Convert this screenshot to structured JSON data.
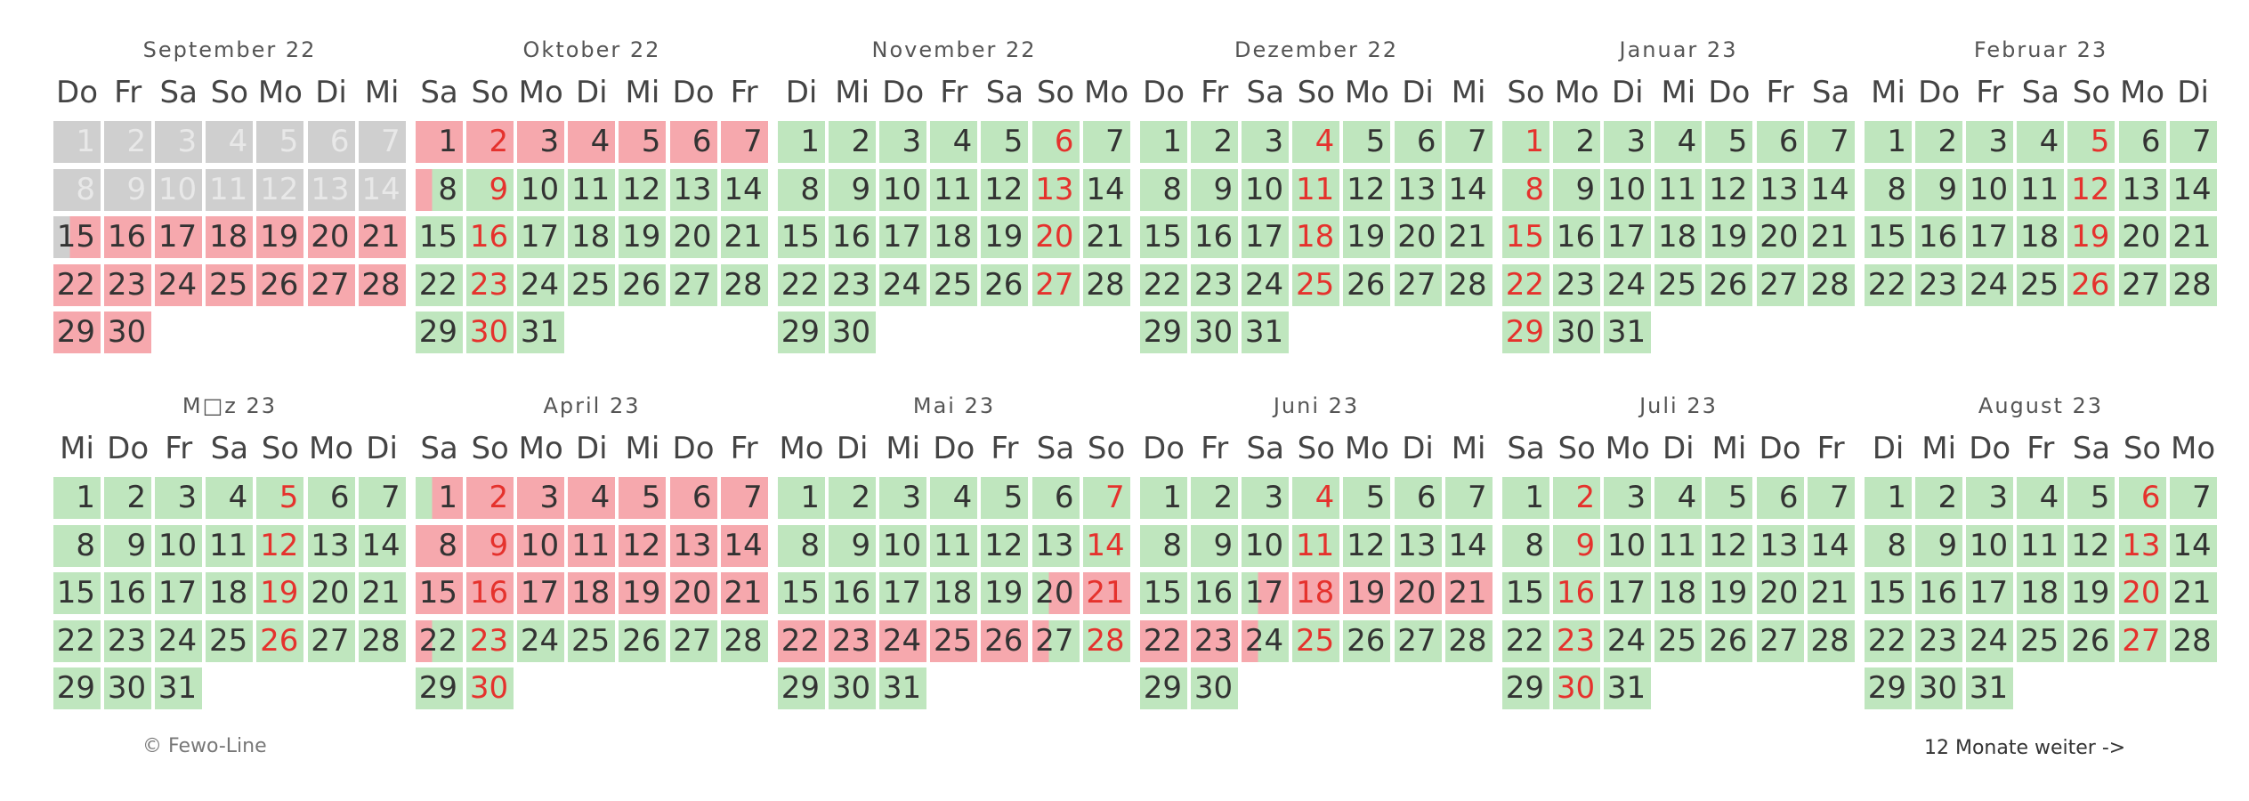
{
  "months": [
    {
      "title": "September 22",
      "weekdays": [
        "Do",
        "Fr",
        "Sa",
        "So",
        "Mo",
        "Di",
        "Mi"
      ],
      "days": 30,
      "sundays": [],
      "status": [
        "p",
        "p",
        "p",
        "p",
        "p",
        "p",
        "p",
        "p",
        "p",
        "p",
        "p",
        "p",
        "p",
        "p",
        "pci",
        "b",
        "b",
        "b",
        "b",
        "b",
        "b",
        "b",
        "b",
        "b",
        "b",
        "b",
        "b",
        "b",
        "b",
        "b"
      ]
    },
    {
      "title": "Oktober 22",
      "weekdays": [
        "Sa",
        "So",
        "Mo",
        "Di",
        "Mi",
        "Do",
        "Fr"
      ],
      "days": 31,
      "sundays": [
        2,
        9,
        16,
        23,
        30
      ],
      "status": [
        "b",
        "b",
        "b",
        "b",
        "b",
        "b",
        "b",
        "co",
        "f",
        "f",
        "f",
        "f",
        "f",
        "f",
        "f",
        "f",
        "f",
        "f",
        "f",
        "f",
        "f",
        "f",
        "f",
        "f",
        "f",
        "f",
        "f",
        "f",
        "f",
        "f",
        "f"
      ]
    },
    {
      "title": "November 22",
      "weekdays": [
        "Di",
        "Mi",
        "Do",
        "Fr",
        "Sa",
        "So",
        "Mo"
      ],
      "days": 30,
      "sundays": [
        6,
        13,
        20,
        27
      ],
      "status": [
        "f",
        "f",
        "f",
        "f",
        "f",
        "f",
        "f",
        "f",
        "f",
        "f",
        "f",
        "f",
        "f",
        "f",
        "f",
        "f",
        "f",
        "f",
        "f",
        "f",
        "f",
        "f",
        "f",
        "f",
        "f",
        "f",
        "f",
        "f",
        "f",
        "f"
      ]
    },
    {
      "title": "Dezember 22",
      "weekdays": [
        "Do",
        "Fr",
        "Sa",
        "So",
        "Mo",
        "Di",
        "Mi"
      ],
      "days": 31,
      "sundays": [
        4,
        11,
        18,
        25
      ],
      "status": [
        "f",
        "f",
        "f",
        "f",
        "f",
        "f",
        "f",
        "f",
        "f",
        "f",
        "f",
        "f",
        "f",
        "f",
        "f",
        "f",
        "f",
        "f",
        "f",
        "f",
        "f",
        "f",
        "f",
        "f",
        "f",
        "f",
        "f",
        "f",
        "f",
        "f",
        "f"
      ]
    },
    {
      "title": "Januar 23",
      "weekdays": [
        "So",
        "Mo",
        "Di",
        "Mi",
        "Do",
        "Fr",
        "Sa"
      ],
      "days": 31,
      "sundays": [
        1,
        8,
        15,
        22,
        29
      ],
      "status": [
        "f",
        "f",
        "f",
        "f",
        "f",
        "f",
        "f",
        "f",
        "f",
        "f",
        "f",
        "f",
        "f",
        "f",
        "f",
        "f",
        "f",
        "f",
        "f",
        "f",
        "f",
        "f",
        "f",
        "f",
        "f",
        "f",
        "f",
        "f",
        "f",
        "f",
        "f"
      ]
    },
    {
      "title": "Februar 23",
      "weekdays": [
        "Mi",
        "Do",
        "Fr",
        "Sa",
        "So",
        "Mo",
        "Di"
      ],
      "days": 28,
      "sundays": [
        5,
        12,
        19,
        26
      ],
      "status": [
        "f",
        "f",
        "f",
        "f",
        "f",
        "f",
        "f",
        "f",
        "f",
        "f",
        "f",
        "f",
        "f",
        "f",
        "f",
        "f",
        "f",
        "f",
        "f",
        "f",
        "f",
        "f",
        "f",
        "f",
        "f",
        "f",
        "f",
        "f"
      ]
    },
    {
      "title": "M□z 23",
      "weekdays": [
        "Mi",
        "Do",
        "Fr",
        "Sa",
        "So",
        "Mo",
        "Di"
      ],
      "days": 31,
      "sundays": [
        5,
        12,
        19,
        26
      ],
      "status": [
        "f",
        "f",
        "f",
        "f",
        "f",
        "f",
        "f",
        "f",
        "f",
        "f",
        "f",
        "f",
        "f",
        "f",
        "f",
        "f",
        "f",
        "f",
        "f",
        "f",
        "f",
        "f",
        "f",
        "f",
        "f",
        "f",
        "f",
        "f",
        "f",
        "f",
        "f"
      ]
    },
    {
      "title": "April 23",
      "weekdays": [
        "Sa",
        "So",
        "Mo",
        "Di",
        "Mi",
        "Do",
        "Fr"
      ],
      "days": 30,
      "sundays": [
        2,
        9,
        16,
        23,
        30
      ],
      "status": [
        "ci",
        "b",
        "b",
        "b",
        "b",
        "b",
        "b",
        "b",
        "b",
        "b",
        "b",
        "b",
        "b",
        "b",
        "b",
        "b",
        "b",
        "b",
        "b",
        "b",
        "b",
        "co",
        "f",
        "f",
        "f",
        "f",
        "f",
        "f",
        "f",
        "f"
      ]
    },
    {
      "title": "Mai 23",
      "weekdays": [
        "Mo",
        "Di",
        "Mi",
        "Do",
        "Fr",
        "Sa",
        "So"
      ],
      "days": 31,
      "sundays": [
        7,
        14,
        21,
        28
      ],
      "status": [
        "f",
        "f",
        "f",
        "f",
        "f",
        "f",
        "f",
        "f",
        "f",
        "f",
        "f",
        "f",
        "f",
        "f",
        "f",
        "f",
        "f",
        "f",
        "f",
        "ci",
        "b",
        "b",
        "b",
        "b",
        "b",
        "b",
        "co",
        "f",
        "f",
        "f",
        "f"
      ]
    },
    {
      "title": "Juni 23",
      "weekdays": [
        "Do",
        "Fr",
        "Sa",
        "So",
        "Mo",
        "Di",
        "Mi"
      ],
      "days": 30,
      "sundays": [
        4,
        11,
        18,
        25
      ],
      "status": [
        "f",
        "f",
        "f",
        "f",
        "f",
        "f",
        "f",
        "f",
        "f",
        "f",
        "f",
        "f",
        "f",
        "f",
        "f",
        "f",
        "ci",
        "b",
        "b",
        "b",
        "b",
        "b",
        "b",
        "co",
        "f",
        "f",
        "f",
        "f",
        "f",
        "f"
      ]
    },
    {
      "title": "Juli 23",
      "weekdays": [
        "Sa",
        "So",
        "Mo",
        "Di",
        "Mi",
        "Do",
        "Fr"
      ],
      "days": 31,
      "sundays": [
        2,
        9,
        16,
        23,
        30
      ],
      "status": [
        "f",
        "f",
        "f",
        "f",
        "f",
        "f",
        "f",
        "f",
        "f",
        "f",
        "f",
        "f",
        "f",
        "f",
        "f",
        "f",
        "f",
        "f",
        "f",
        "f",
        "f",
        "f",
        "f",
        "f",
        "f",
        "f",
        "f",
        "f",
        "f",
        "f",
        "f"
      ]
    },
    {
      "title": "August 23",
      "weekdays": [
        "Di",
        "Mi",
        "Do",
        "Fr",
        "Sa",
        "So",
        "Mo"
      ],
      "days": 31,
      "sundays": [
        6,
        13,
        20,
        27
      ],
      "status": [
        "f",
        "f",
        "f",
        "f",
        "f",
        "f",
        "f",
        "f",
        "f",
        "f",
        "f",
        "f",
        "f",
        "f",
        "f",
        "f",
        "f",
        "f",
        "f",
        "f",
        "f",
        "f",
        "f",
        "f",
        "f",
        "f",
        "f",
        "f",
        "f",
        "f",
        "f"
      ]
    }
  ],
  "footer": {
    "copyright": "© Fewo-Line",
    "next_link": "12 Monate weiter ->"
  },
  "colors": {
    "free": "#bfe6be",
    "booked": "#f6a8ad",
    "past": "#cfcfcf",
    "sunday_text": "#e5322d"
  }
}
